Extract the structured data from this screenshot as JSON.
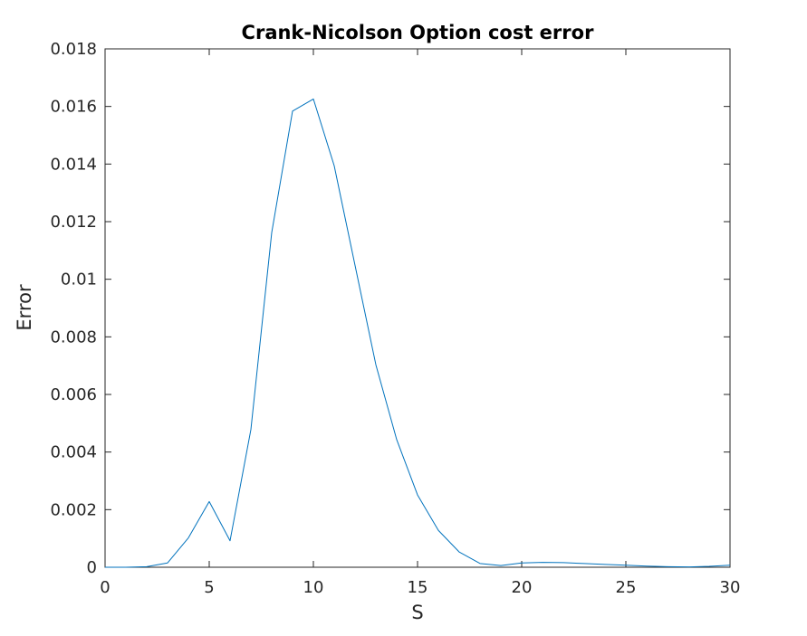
{
  "chart_data": {
    "type": "line",
    "title": "Crank-Nicolson Option cost error",
    "xlabel": "S",
    "ylabel": "Error",
    "xlim": [
      0,
      30
    ],
    "ylim": [
      0,
      0.018
    ],
    "xticks": [
      0,
      5,
      10,
      15,
      20,
      25,
      30
    ],
    "xtick_labels": [
      "0",
      "5",
      "10",
      "15",
      "20",
      "25",
      "30"
    ],
    "yticks": [
      0,
      0.002,
      0.004,
      0.006,
      0.008,
      0.01,
      0.012,
      0.014,
      0.016,
      0.018
    ],
    "ytick_labels": [
      "0",
      "0.002",
      "0.004",
      "0.006",
      "0.008",
      "0.01",
      "0.012",
      "0.014",
      "0.016",
      "0.018"
    ],
    "grid": false,
    "legend": false,
    "color": "#0072BD",
    "series": [
      {
        "x": [
          0,
          1,
          2,
          3,
          4,
          5,
          6,
          7,
          8,
          9,
          10,
          11,
          12,
          13,
          14,
          15,
          16,
          17,
          18,
          19,
          20,
          21,
          22,
          23,
          24,
          25,
          26,
          27,
          28,
          29,
          30
        ],
        "values": [
          0.0,
          0.0,
          2e-05,
          0.00015,
          0.00102,
          0.00228,
          0.00092,
          0.00478,
          0.01162,
          0.01584,
          0.01626,
          0.01394,
          0.01048,
          0.00703,
          0.00443,
          0.00251,
          0.00128,
          0.00053,
          0.00013,
          6e-05,
          0.00015,
          0.00017,
          0.00016,
          0.00013,
          0.0001,
          7e-05,
          4e-05,
          2e-05,
          1e-05,
          3e-05,
          7e-05
        ]
      }
    ]
  }
}
